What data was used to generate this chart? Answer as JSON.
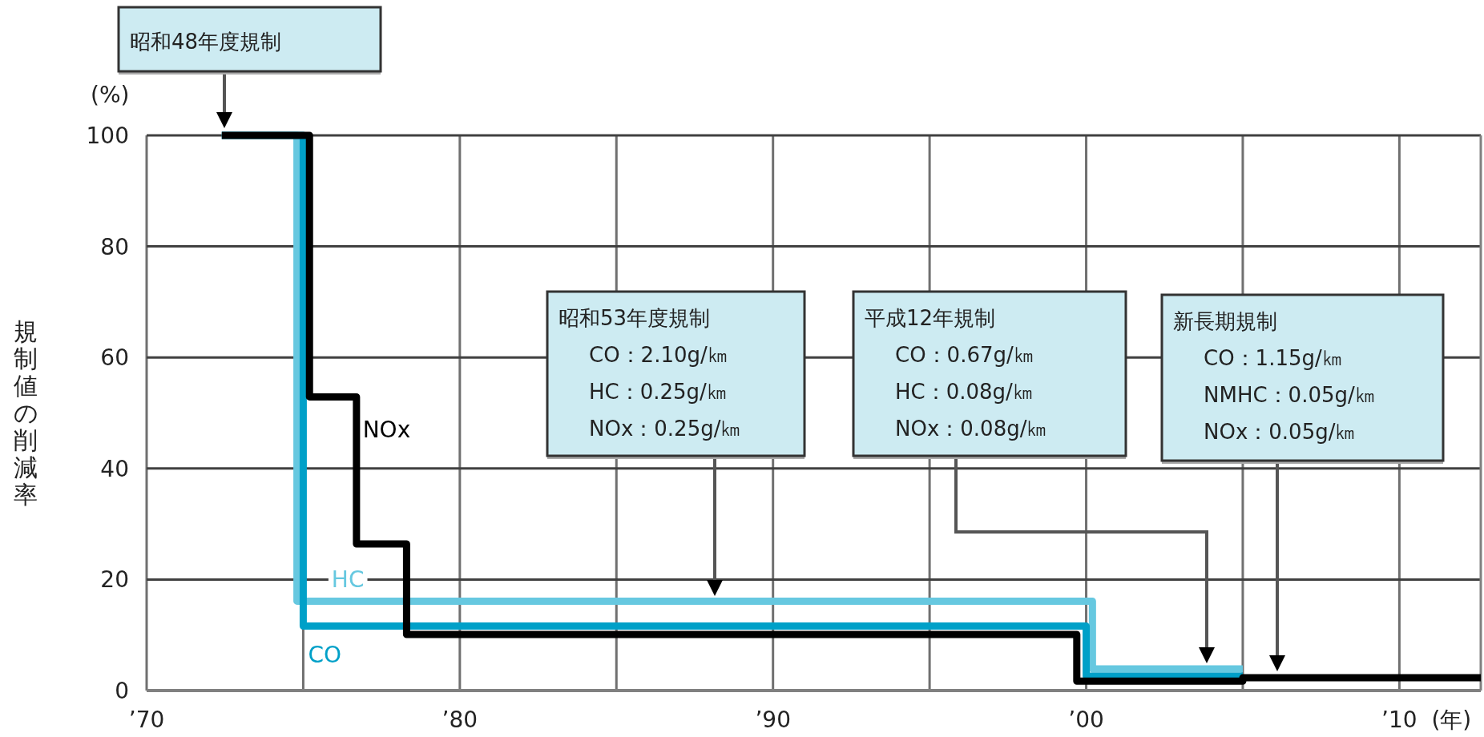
{
  "chart_data": {
    "type": "step",
    "ylabel": "規制値の削減率",
    "xlabel": "(年)",
    "xlim": [
      1970,
      2012.6
    ],
    "ylim": [
      0,
      100
    ],
    "xticks": [
      {
        "value": 1970,
        "label": "’70"
      },
      {
        "value": 1975,
        "label": null
      },
      {
        "value": 1980,
        "label": "’80"
      },
      {
        "value": 1985,
        "label": null
      },
      {
        "value": 1990,
        "label": "’90"
      },
      {
        "value": 1995,
        "label": null
      },
      {
        "value": 2000,
        "label": "’00"
      },
      {
        "value": 2005,
        "label": null
      },
      {
        "value": 2010,
        "label": "’10"
      }
    ],
    "yticks": [
      0,
      20,
      40,
      60,
      80,
      100
    ],
    "grid": true,
    "line_style": "solid",
    "marker": "none",
    "series": [
      {
        "name": "HC",
        "color": "#66c8e0",
        "x": [
          1972.4,
          1974.8,
          2000.2,
          2005
        ],
        "values": [
          100,
          16.1,
          3.9,
          3.9
        ]
      },
      {
        "name": "CO",
        "color": "#00a0c8",
        "x": [
          1972.4,
          1975,
          2000,
          2005
        ],
        "values": [
          100,
          11.6,
          2.6,
          2.6
        ]
      },
      {
        "name": "NOx",
        "color": "#000000",
        "x": [
          1972.4,
          1975.2,
          1976.7,
          1978.3,
          1999.7,
          2005,
          2012.6
        ],
        "values": [
          100,
          52.9,
          26.4,
          10.1,
          1.7,
          2.3,
          2.3
        ]
      }
    ],
    "annotations": [
      "(%)",
      "昭和48年度規制",
      "昭和53年度規制\nCO：2.10g/㎞\nHC：0.25g/㎞\nNOx：0.25g/㎞",
      "平成12年規制\nCO：0.67g/㎞\nHC：0.08g/㎞\nNOx：0.08g/㎞",
      "新長期規制\nCO：1.15g/㎞\nNMHC：0.05g/㎞\nNOx：0.05g/㎞"
    ]
  }
}
